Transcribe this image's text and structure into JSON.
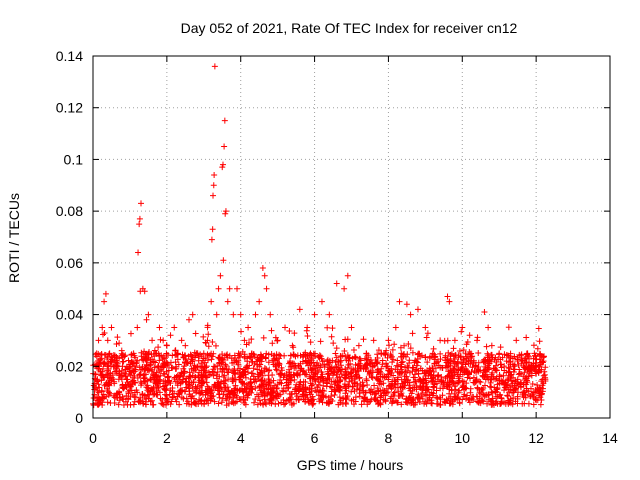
{
  "chart_data": {
    "type": "scatter",
    "title": "Day 052 of 2021, Rate Of TEC Index for receiver cn12",
    "xlabel": "GPS time / hours",
    "ylabel": "ROTI / TECUs",
    "xlim": [
      0,
      14
    ],
    "ylim": [
      0,
      0.14
    ],
    "x_ticks": [
      0,
      2,
      4,
      6,
      8,
      10,
      12,
      14
    ],
    "y_ticks": [
      0,
      0.02,
      0.04,
      0.06,
      0.08,
      0.1,
      0.12,
      0.14
    ],
    "x_tick_labels": [
      "0",
      "2",
      "4",
      "6",
      "8",
      "10",
      "12",
      "14"
    ],
    "y_tick_labels": [
      "0",
      "0.02",
      "0.04",
      "0.06",
      "0.08",
      "0.1",
      "0.12",
      "0.14"
    ],
    "grid": true,
    "marker": "+",
    "color": "#ff0000",
    "series": [
      {
        "name": "ROTI",
        "points": [
          [
            0.02,
            0.005
          ],
          [
            0.05,
            0.012
          ],
          [
            0.08,
            0.02
          ],
          [
            0.1,
            0.025
          ],
          [
            0.12,
            0.015
          ],
          [
            0.15,
            0.03
          ],
          [
            0.2,
            0.022
          ],
          [
            0.25,
            0.035
          ],
          [
            0.3,
            0.045
          ],
          [
            0.35,
            0.048
          ],
          [
            0.4,
            0.03
          ],
          [
            0.45,
            0.025
          ],
          [
            0.5,
            0.035
          ],
          [
            0.6,
            0.018
          ],
          [
            0.7,
            0.015
          ],
          [
            0.8,
            0.02
          ],
          [
            0.9,
            0.012
          ],
          [
            1.0,
            0.018
          ],
          [
            1.1,
            0.025
          ],
          [
            1.2,
            0.035
          ],
          [
            1.22,
            0.064
          ],
          [
            1.25,
            0.075
          ],
          [
            1.27,
            0.077
          ],
          [
            1.3,
            0.083
          ],
          [
            1.28,
            0.049
          ],
          [
            1.35,
            0.05
          ],
          [
            1.4,
            0.049
          ],
          [
            1.45,
            0.038
          ],
          [
            1.5,
            0.04
          ],
          [
            1.6,
            0.03
          ],
          [
            1.7,
            0.025
          ],
          [
            1.8,
            0.035
          ],
          [
            1.9,
            0.03
          ],
          [
            2.0,
            0.028
          ],
          [
            2.1,
            0.032
          ],
          [
            2.2,
            0.035
          ],
          [
            2.3,
            0.025
          ],
          [
            2.4,
            0.03
          ],
          [
            2.5,
            0.028
          ],
          [
            2.6,
            0.038
          ],
          [
            2.7,
            0.04
          ],
          [
            2.8,
            0.025
          ],
          [
            2.9,
            0.02
          ],
          [
            3.0,
            0.025
          ],
          [
            3.1,
            0.03
          ],
          [
            3.2,
            0.045
          ],
          [
            3.22,
            0.069
          ],
          [
            3.24,
            0.073
          ],
          [
            3.25,
            0.086
          ],
          [
            3.27,
            0.09
          ],
          [
            3.28,
            0.094
          ],
          [
            3.3,
            0.136
          ],
          [
            3.35,
            0.04
          ],
          [
            3.4,
            0.05
          ],
          [
            3.45,
            0.055
          ],
          [
            3.5,
            0.097
          ],
          [
            3.52,
            0.098
          ],
          [
            3.55,
            0.105
          ],
          [
            3.57,
            0.115
          ],
          [
            3.53,
            0.061
          ],
          [
            3.58,
            0.079
          ],
          [
            3.6,
            0.08
          ],
          [
            3.65,
            0.045
          ],
          [
            3.7,
            0.05
          ],
          [
            3.8,
            0.04
          ],
          [
            3.9,
            0.05
          ],
          [
            4.0,
            0.04
          ],
          [
            4.1,
            0.03
          ],
          [
            4.2,
            0.035
          ],
          [
            4.3,
            0.025
          ],
          [
            4.4,
            0.04
          ],
          [
            4.5,
            0.045
          ],
          [
            4.6,
            0.058
          ],
          [
            4.65,
            0.055
          ],
          [
            4.7,
            0.05
          ],
          [
            4.8,
            0.04
          ],
          [
            5.0,
            0.03
          ],
          [
            5.2,
            0.035
          ],
          [
            5.4,
            0.028
          ],
          [
            5.6,
            0.042
          ],
          [
            5.8,
            0.035
          ],
          [
            6.0,
            0.04
          ],
          [
            6.2,
            0.045
          ],
          [
            6.4,
            0.04
          ],
          [
            6.6,
            0.052
          ],
          [
            6.8,
            0.05
          ],
          [
            6.9,
            0.055
          ],
          [
            7.0,
            0.035
          ],
          [
            7.2,
            0.028
          ],
          [
            7.4,
            0.025
          ],
          [
            7.6,
            0.03
          ],
          [
            7.8,
            0.025
          ],
          [
            8.0,
            0.03
          ],
          [
            8.2,
            0.035
          ],
          [
            8.3,
            0.045
          ],
          [
            8.5,
            0.044
          ],
          [
            8.6,
            0.04
          ],
          [
            8.8,
            0.042
          ],
          [
            9.0,
            0.035
          ],
          [
            9.2,
            0.025
          ],
          [
            9.4,
            0.03
          ],
          [
            9.6,
            0.047
          ],
          [
            9.65,
            0.045
          ],
          [
            9.8,
            0.03
          ],
          [
            10.0,
            0.035
          ],
          [
            10.2,
            0.032
          ],
          [
            10.4,
            0.03
          ],
          [
            10.6,
            0.041
          ],
          [
            10.7,
            0.035
          ],
          [
            10.8,
            0.028
          ],
          [
            11.0,
            0.025
          ],
          [
            11.2,
            0.022
          ],
          [
            11.4,
            0.02
          ],
          [
            11.6,
            0.022
          ],
          [
            11.8,
            0.02
          ],
          [
            12.0,
            0.018
          ],
          [
            12.2,
            0.022
          ],
          [
            12.25,
            0.015
          ]
        ]
      }
    ],
    "band": {
      "note": "dense background cloud of ROTI samples",
      "x_range": [
        0,
        12.25
      ],
      "typical_range": [
        0.005,
        0.025
      ]
    }
  }
}
